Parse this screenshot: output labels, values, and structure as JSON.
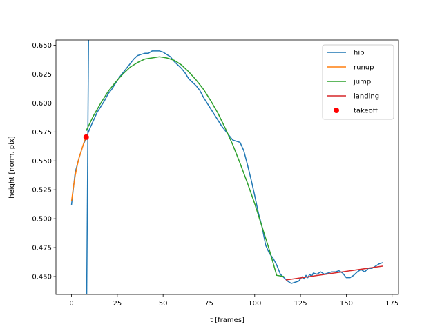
{
  "chart_data": {
    "type": "line",
    "xlabel": "t [frames]",
    "ylabel": "height [norm. pix]",
    "xlim": [
      -8.5,
      178.5
    ],
    "ylim": [
      0.4345,
      0.6545
    ],
    "x_ticks": [
      0,
      25,
      50,
      75,
      100,
      125,
      150,
      175
    ],
    "y_ticks": [
      0.45,
      0.475,
      0.5,
      0.525,
      0.55,
      0.575,
      0.6,
      0.625,
      0.65
    ],
    "y_tick_labels": [
      "0.450",
      "0.475",
      "0.500",
      "0.525",
      "0.550",
      "0.575",
      "0.600",
      "0.625",
      "0.650"
    ],
    "grid": false,
    "legend_position": "top-right",
    "series": [
      {
        "name": "hip",
        "color": "#1f77b4",
        "kind": "line",
        "x": [
          0,
          2,
          4,
          6,
          8,
          10,
          12,
          14,
          16,
          18,
          20,
          22,
          24,
          26,
          28,
          30,
          32,
          34,
          36,
          38,
          40,
          42,
          44,
          46,
          48,
          50,
          52,
          54,
          56,
          58,
          60,
          62,
          64,
          66,
          68,
          70,
          72,
          74,
          76,
          78,
          80,
          82,
          84,
          86,
          88,
          90,
          92,
          94,
          96,
          98,
          100,
          102,
          104,
          106,
          108,
          110,
          112,
          114,
          116,
          118,
          120,
          122,
          124,
          126,
          127,
          128,
          129,
          130,
          131,
          132,
          134,
          136,
          138,
          140,
          142,
          144,
          146,
          148,
          150,
          152,
          154,
          156,
          158,
          160,
          162,
          164,
          166,
          168,
          170
        ],
        "y": [
          0.512,
          0.54,
          0.552,
          0.562,
          0.57,
          0.578,
          0.585,
          0.592,
          0.597,
          0.602,
          0.608,
          0.612,
          0.617,
          0.622,
          0.626,
          0.63,
          0.634,
          0.638,
          0.641,
          0.642,
          0.643,
          0.643,
          0.645,
          0.645,
          0.645,
          0.644,
          0.642,
          0.64,
          0.636,
          0.633,
          0.63,
          0.626,
          0.621,
          0.618,
          0.615,
          0.611,
          0.605,
          0.6,
          0.595,
          0.59,
          0.585,
          0.58,
          0.576,
          0.572,
          0.568,
          0.567,
          0.566,
          0.559,
          0.547,
          0.534,
          0.52,
          0.505,
          0.493,
          0.477,
          0.47,
          0.466,
          0.46,
          0.452,
          0.449,
          0.446,
          0.444,
          0.445,
          0.446,
          0.45,
          0.448,
          0.451,
          0.449,
          0.452,
          0.45,
          0.453,
          0.452,
          0.454,
          0.452,
          0.453,
          0.454,
          0.454,
          0.455,
          0.453,
          0.449,
          0.449,
          0.451,
          0.454,
          0.456,
          0.454,
          0.457,
          0.457,
          0.459,
          0.461,
          0.462
        ]
      },
      {
        "name": "",
        "color": "#1f77b4",
        "kind": "line",
        "x": [
          9.3,
          8.3
        ],
        "y": [
          0.6545,
          0.4345
        ]
      },
      {
        "name": "runup",
        "color": "#ff7f0e",
        "kind": "line",
        "x": [
          0,
          1,
          2,
          3,
          4,
          5,
          6,
          7,
          8
        ],
        "y": [
          0.515,
          0.527,
          0.537,
          0.545,
          0.552,
          0.557,
          0.562,
          0.567,
          0.571
        ]
      },
      {
        "name": "jump",
        "color": "#2ca02c",
        "kind": "line",
        "x": [
          8,
          12,
          16,
          20,
          24,
          28,
          32,
          36,
          40,
          44,
          48,
          52,
          56,
          60,
          64,
          68,
          72,
          76,
          80,
          84,
          88,
          92,
          96,
          100,
          104,
          108,
          112,
          116
        ],
        "y": [
          0.576,
          0.589,
          0.6,
          0.61,
          0.618,
          0.625,
          0.631,
          0.635,
          0.638,
          0.639,
          0.64,
          0.639,
          0.637,
          0.633,
          0.627,
          0.62,
          0.612,
          0.602,
          0.591,
          0.578,
          0.564,
          0.548,
          0.531,
          0.513,
          0.493,
          0.473,
          0.451,
          0.45
        ]
      },
      {
        "name": "landing",
        "color": "#d62728",
        "kind": "line",
        "x": [
          117,
          170
        ],
        "y": [
          0.447,
          0.459
        ]
      },
      {
        "name": "takeoff",
        "color": "#ff0000",
        "kind": "scatter",
        "x": [
          8
        ],
        "y": [
          0.5705
        ]
      }
    ],
    "legend": [
      {
        "label": "hip",
        "color": "#1f77b4",
        "marker": "line"
      },
      {
        "label": "runup",
        "color": "#ff7f0e",
        "marker": "line"
      },
      {
        "label": "jump",
        "color": "#2ca02c",
        "marker": "line"
      },
      {
        "label": "landing",
        "color": "#d62728",
        "marker": "line"
      },
      {
        "label": "takeoff",
        "color": "#ff0000",
        "marker": "dot"
      }
    ]
  }
}
